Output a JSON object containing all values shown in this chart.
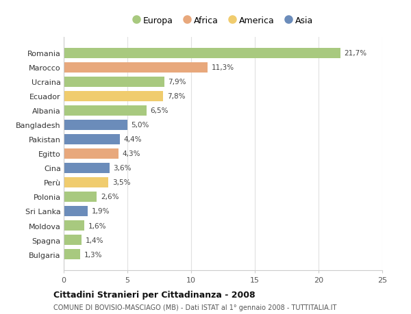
{
  "categories": [
    "Romania",
    "Marocco",
    "Ucraina",
    "Ecuador",
    "Albania",
    "Bangladesh",
    "Pakistan",
    "Egitto",
    "Cina",
    "Perù",
    "Polonia",
    "Sri Lanka",
    "Moldova",
    "Spagna",
    "Bulgaria"
  ],
  "values": [
    21.7,
    11.3,
    7.9,
    7.8,
    6.5,
    5.0,
    4.4,
    4.3,
    3.6,
    3.5,
    2.6,
    1.9,
    1.6,
    1.4,
    1.3
  ],
  "labels": [
    "21,7%",
    "11,3%",
    "7,9%",
    "7,8%",
    "6,5%",
    "5,0%",
    "4,4%",
    "4,3%",
    "3,6%",
    "3,5%",
    "2,6%",
    "1,9%",
    "1,6%",
    "1,4%",
    "1,3%"
  ],
  "continent": [
    "Europa",
    "Africa",
    "Europa",
    "America",
    "Europa",
    "Asia",
    "Asia",
    "Africa",
    "Asia",
    "America",
    "Europa",
    "Asia",
    "Europa",
    "Europa",
    "Europa"
  ],
  "colors": {
    "Europa": "#a8c97f",
    "Africa": "#e8a87c",
    "America": "#f0cc6e",
    "Asia": "#6b8cba"
  },
  "legend_order": [
    "Europa",
    "Africa",
    "America",
    "Asia"
  ],
  "title": "Cittadini Stranieri per Cittadinanza - 2008",
  "subtitle": "COMUNE DI BOVISIO-MASCIAGO (MB) - Dati ISTAT al 1° gennaio 2008 - TUTTITALIA.IT",
  "xlim": [
    0,
    25
  ],
  "xticks": [
    0,
    5,
    10,
    15,
    20,
    25
  ],
  "background_color": "#ffffff",
  "plot_bg_color": "#ffffff",
  "grid_color": "#e0e0e0",
  "bar_height": 0.72
}
